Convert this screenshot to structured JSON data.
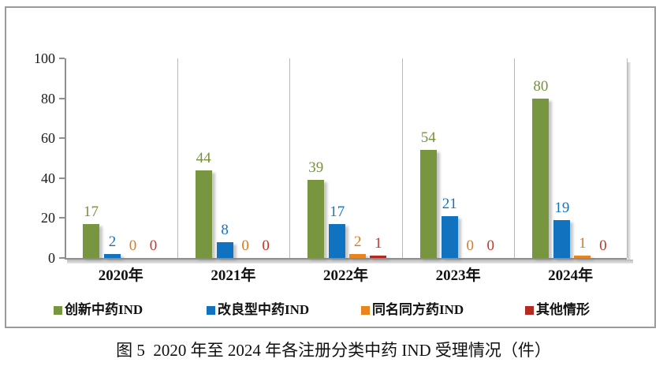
{
  "caption": "图 5  2020 年至 2024 年各注册分类中药 IND 受理情况（件）",
  "chart_data": {
    "type": "bar",
    "title": "",
    "xlabel": "",
    "ylabel": "",
    "categories": [
      "2020年",
      "2021年",
      "2022年",
      "2023年",
      "2024年"
    ],
    "series": [
      {
        "name": "创新中药IND",
        "color": "#789640",
        "label_color": "#76923C",
        "values": [
          17,
          44,
          39,
          54,
          80
        ]
      },
      {
        "name": "改良型中药IND",
        "color": "#1172BF",
        "label_color": "#1473BE",
        "values": [
          2,
          8,
          17,
          21,
          19
        ]
      },
      {
        "name": "同名同方药IND",
        "color": "#E8851E",
        "label_color": "#E07820",
        "values": [
          0,
          0,
          2,
          0,
          1
        ]
      },
      {
        "name": "其他情形",
        "color": "#B22A20",
        "label_color": "#C63526",
        "values": [
          0,
          0,
          1,
          0,
          0
        ]
      }
    ],
    "ylim": [
      0,
      100
    ],
    "yticks": [
      0,
      20,
      40,
      60,
      80,
      100
    ],
    "grid": "vertical group separators only",
    "legend_position": "bottom",
    "value_labels": "above bars, colored per series"
  }
}
